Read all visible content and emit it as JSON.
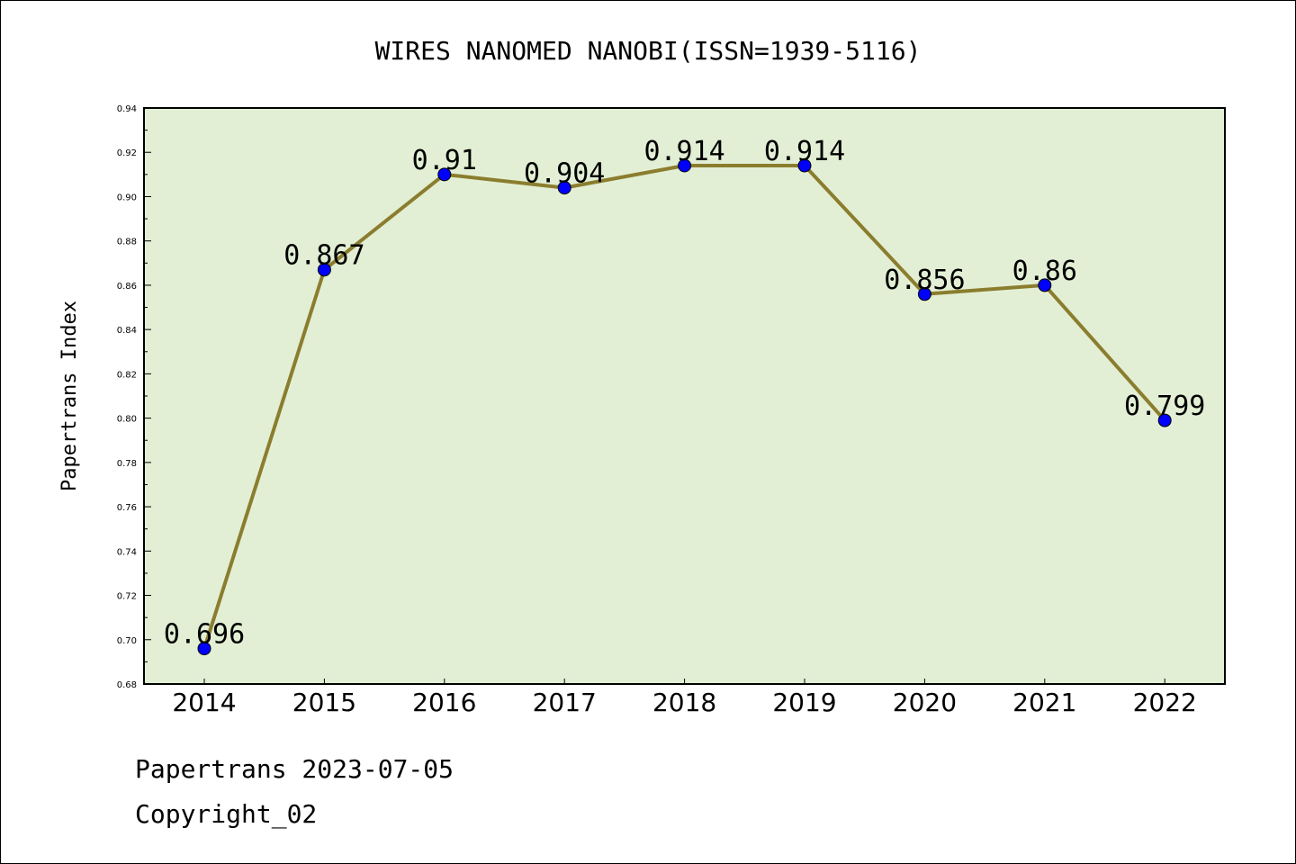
{
  "chart_data": {
    "type": "line",
    "title": "WIRES NANOMED NANOBI(ISSN=1939-5116)",
    "xlabel": "",
    "ylabel": "Papertrans Index",
    "categories": [
      "2014",
      "2015",
      "2016",
      "2017",
      "2018",
      "2019",
      "2020",
      "2021",
      "2022"
    ],
    "series": [
      {
        "values": [
          0.696,
          0.867,
          0.91,
          0.904,
          0.914,
          0.914,
          0.856,
          0.86,
          0.799
        ],
        "labels": [
          "0.696",
          "0.867",
          "0.91",
          "0.904",
          "0.914",
          "0.914",
          "0.856",
          "0.86",
          "0.799"
        ]
      }
    ],
    "ylim": [
      0.68,
      0.94
    ],
    "yticks": [
      "0.68",
      "0.70",
      "0.72",
      "0.74",
      "0.76",
      "0.78",
      "0.80",
      "0.82",
      "0.84",
      "0.86",
      "0.88",
      "0.90",
      "0.92",
      "0.94"
    ],
    "grid": false,
    "colors": {
      "plot_background": "#e2efd4",
      "line": "#8b7d2e",
      "marker": "#0000ff"
    }
  },
  "footer": {
    "line1": "Papertrans 2023-07-05",
    "line2": "Copyright_02"
  }
}
